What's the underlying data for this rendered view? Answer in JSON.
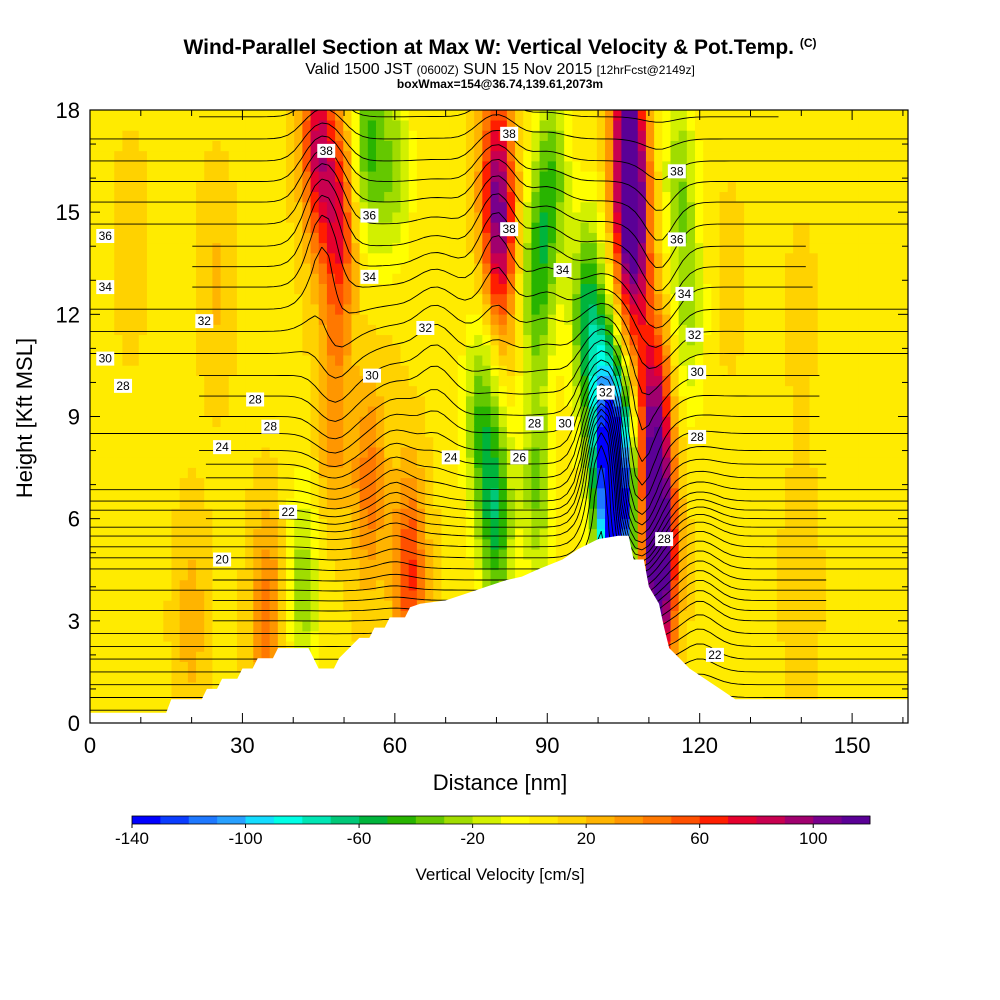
{
  "chart_data": {
    "type": "heatmap",
    "title": "Wind-Parallel Section at Max W: Vertical Velocity & Pot.Temp.",
    "title_mark": "(C)",
    "subtitle_main": "Valid 1500 JST",
    "subtitle_utc": "(0600Z)",
    "subtitle_date": "SUN 15 Nov 2015",
    "subtitle_fcst": "[12hrFcst@2149z]",
    "subtitle2": "boxWmax=154@36.74,139.61,2073m",
    "xlabel": "Distance [nm]",
    "ylabel": "Height [Kft MSL]",
    "xlim": [
      0,
      161
    ],
    "ylim": [
      0,
      18
    ],
    "xticks": [
      0,
      30,
      60,
      90,
      120,
      150
    ],
    "yticks": [
      0,
      3,
      6,
      9,
      12,
      15,
      18
    ],
    "colorbar": {
      "label": "Vertical Velocity [cm/s]",
      "ticks": [
        -140,
        -100,
        -60,
        -20,
        20,
        60,
        100
      ],
      "colors": [
        "#0000ff",
        "#0a3cff",
        "#1e78ff",
        "#28a0ff",
        "#14dcff",
        "#00ffe6",
        "#00e6b4",
        "#00c878",
        "#00b43c",
        "#28b400",
        "#64c800",
        "#a0dc00",
        "#d2f000",
        "#ffff00",
        "#ffeb00",
        "#ffd200",
        "#ffb400",
        "#ff9600",
        "#ff7800",
        "#ff5000",
        "#ff1e00",
        "#e6002d",
        "#c80050",
        "#a0006e",
        "#78008c",
        "#5a0096"
      ]
    },
    "terrain": [
      [
        0,
        0.3
      ],
      [
        15,
        0.3
      ],
      [
        16,
        0.7
      ],
      [
        22,
        0.7
      ],
      [
        23,
        1.0
      ],
      [
        25,
        1.0
      ],
      [
        26,
        1.3
      ],
      [
        29,
        1.3
      ],
      [
        30,
        1.6
      ],
      [
        32,
        1.6
      ],
      [
        33,
        1.9
      ],
      [
        36,
        1.9
      ],
      [
        37,
        2.2
      ],
      [
        43,
        2.2
      ],
      [
        44,
        1.9
      ],
      [
        45,
        1.6
      ],
      [
        48,
        1.6
      ],
      [
        49,
        1.9
      ],
      [
        51,
        2.2
      ],
      [
        53,
        2.5
      ],
      [
        55,
        2.5
      ],
      [
        56,
        2.8
      ],
      [
        58,
        2.8
      ],
      [
        59,
        3.1
      ],
      [
        62,
        3.1
      ],
      [
        63,
        3.4
      ],
      [
        65,
        3.5
      ],
      [
        70,
        3.6
      ],
      [
        74,
        3.8
      ],
      [
        78,
        4.0
      ],
      [
        82,
        4.2
      ],
      [
        85,
        4.3
      ],
      [
        88,
        4.5
      ],
      [
        93,
        4.8
      ],
      [
        96,
        5.1
      ],
      [
        100,
        5.4
      ],
      [
        104,
        5.5
      ],
      [
        106,
        5.5
      ],
      [
        107,
        4.8
      ],
      [
        109,
        4.8
      ],
      [
        110,
        4.0
      ],
      [
        112,
        3.5
      ],
      [
        113,
        2.8
      ],
      [
        114,
        2.2
      ],
      [
        116,
        1.9
      ],
      [
        118,
        1.6
      ],
      [
        121,
        1.3
      ],
      [
        124,
        1.0
      ],
      [
        127,
        0.7
      ],
      [
        131,
        0.7
      ],
      [
        132,
        0.7
      ],
      [
        161,
        0.7
      ]
    ],
    "w_field": {
      "background": 8,
      "features": [
        {
          "x": 8,
          "y": 14,
          "w": 8
        },
        {
          "x": 25,
          "y": 13,
          "w": 14
        },
        {
          "x": 60,
          "y": 13,
          "w": 6
        },
        {
          "x": 140,
          "y": 12,
          "w": 5
        },
        {
          "x": 140,
          "y": 4,
          "w": 12
        },
        {
          "x": 20,
          "y": 3,
          "w": 18
        },
        {
          "x": 35,
          "y": 3,
          "w": 38
        },
        {
          "x": 63,
          "y": 4.4,
          "w": 55
        },
        {
          "x": 48,
          "y": 9,
          "w": 30
        },
        {
          "x": 55,
          "y": 7,
          "w": 38
        },
        {
          "x": 45,
          "y": 17,
          "w": 75
        },
        {
          "x": 49,
          "y": 14.5,
          "w": 62
        },
        {
          "x": 80,
          "y": 16,
          "w": 60
        },
        {
          "x": 81,
          "y": 14,
          "w": 55
        },
        {
          "x": 106,
          "y": 17,
          "w": 105
        },
        {
          "x": 107,
          "y": 14,
          "w": 90
        },
        {
          "x": 111,
          "y": 9,
          "w": 80
        },
        {
          "x": 112,
          "y": 5.5,
          "w": 85
        },
        {
          "x": 112,
          "y": 3.8,
          "w": 60
        },
        {
          "x": 42,
          "y": 4,
          "w": -35
        },
        {
          "x": 55,
          "y": 17,
          "w": -50
        },
        {
          "x": 60,
          "y": 16,
          "w": -35
        },
        {
          "x": 88,
          "y": 13,
          "w": -50
        },
        {
          "x": 80,
          "y": 6,
          "w": -60
        },
        {
          "x": 77,
          "y": 9,
          "w": -45
        },
        {
          "x": 88,
          "y": 7,
          "w": -40
        },
        {
          "x": 91,
          "y": 16,
          "w": -45
        },
        {
          "x": 98,
          "y": 12,
          "w": -60
        },
        {
          "x": 101,
          "y": 9,
          "w": -70
        },
        {
          "x": 103,
          "y": 7.5,
          "w": -90
        },
        {
          "x": 104,
          "y": 6,
          "w": -120
        },
        {
          "x": 116,
          "y": 16,
          "w": -35
        },
        {
          "x": 118,
          "y": 12,
          "w": -30
        },
        {
          "x": 126,
          "y": 13,
          "w": 5
        }
      ]
    },
    "theta_contours": {
      "levels_start": 18,
      "levels_step": 0.5,
      "levels_end": 40,
      "base_x": [
        0,
        20,
        40,
        60,
        80,
        100,
        108,
        113,
        120,
        140,
        161
      ],
      "base_y": [
        0.0,
        1.5,
        3.0,
        4.2,
        5.5,
        6.5,
        7.2,
        8.0,
        9.0,
        10.2,
        11.5,
        12.8,
        14.0,
        15.3,
        16.5,
        17.8,
        19.0
      ],
      "base_theta": [
        18,
        20,
        22,
        24,
        26,
        28,
        29,
        30,
        31,
        32,
        33,
        34,
        35,
        36,
        37,
        38,
        39
      ],
      "perturbations": [
        {
          "x": 46,
          "y": 15,
          "dz": 2.2
        },
        {
          "x": 48,
          "y": 10,
          "dz": -0.9
        },
        {
          "x": 60,
          "y": 8,
          "dz": 0.6
        },
        {
          "x": 68,
          "y": 11,
          "dz": 0.9
        },
        {
          "x": 80,
          "y": 15,
          "dz": 1.6
        },
        {
          "x": 90,
          "y": 14,
          "dz": 0.6
        },
        {
          "x": 101,
          "y": 8.5,
          "dz": 3.5
        },
        {
          "x": 108,
          "y": 7,
          "dz": -2.2
        },
        {
          "x": 112,
          "y": 13,
          "dz": -1.3
        },
        {
          "x": 120,
          "y": 4,
          "dz": 0.6
        }
      ]
    },
    "contour_labels": [
      {
        "t": "38",
        "x": 46.5,
        "y": 16.8
      },
      {
        "t": "38",
        "x": 82.5,
        "y": 17.3
      },
      {
        "t": "38",
        "x": 115.5,
        "y": 16.2
      },
      {
        "t": "38",
        "x": 82.5,
        "y": 14.5
      },
      {
        "t": "36",
        "x": 55,
        "y": 14.9
      },
      {
        "t": "36",
        "x": 3,
        "y": 14.3
      },
      {
        "t": "36",
        "x": 115.5,
        "y": 14.2
      },
      {
        "t": "34",
        "x": 55,
        "y": 13.1
      },
      {
        "t": "34",
        "x": 3,
        "y": 12.8
      },
      {
        "t": "34",
        "x": 93,
        "y": 13.3
      },
      {
        "t": "34",
        "x": 117,
        "y": 12.6
      },
      {
        "t": "32",
        "x": 22.5,
        "y": 11.8
      },
      {
        "t": "32",
        "x": 66,
        "y": 11.6
      },
      {
        "t": "32",
        "x": 101.5,
        "y": 9.7
      },
      {
        "t": "32",
        "x": 119,
        "y": 11.4
      },
      {
        "t": "30",
        "x": 3,
        "y": 10.7
      },
      {
        "t": "30",
        "x": 55.5,
        "y": 10.2
      },
      {
        "t": "30",
        "x": 93.5,
        "y": 8.8
      },
      {
        "t": "30",
        "x": 119.5,
        "y": 10.3
      },
      {
        "t": "28",
        "x": 6.5,
        "y": 9.9
      },
      {
        "t": "28",
        "x": 32.5,
        "y": 9.5
      },
      {
        "t": "28",
        "x": 35.5,
        "y": 8.7
      },
      {
        "t": "28",
        "x": 87.5,
        "y": 8.8
      },
      {
        "t": "28",
        "x": 119.5,
        "y": 8.4
      },
      {
        "t": "24",
        "x": 26,
        "y": 8.1
      },
      {
        "t": "24",
        "x": 71,
        "y": 7.8
      },
      {
        "t": "26",
        "x": 84.5,
        "y": 7.8
      },
      {
        "t": "22",
        "x": 39,
        "y": 6.2
      },
      {
        "t": "22",
        "x": 123,
        "y": 2.0
      },
      {
        "t": "20",
        "x": 26,
        "y": 4.8
      },
      {
        "t": "28",
        "x": 113,
        "y": 5.4
      }
    ]
  }
}
